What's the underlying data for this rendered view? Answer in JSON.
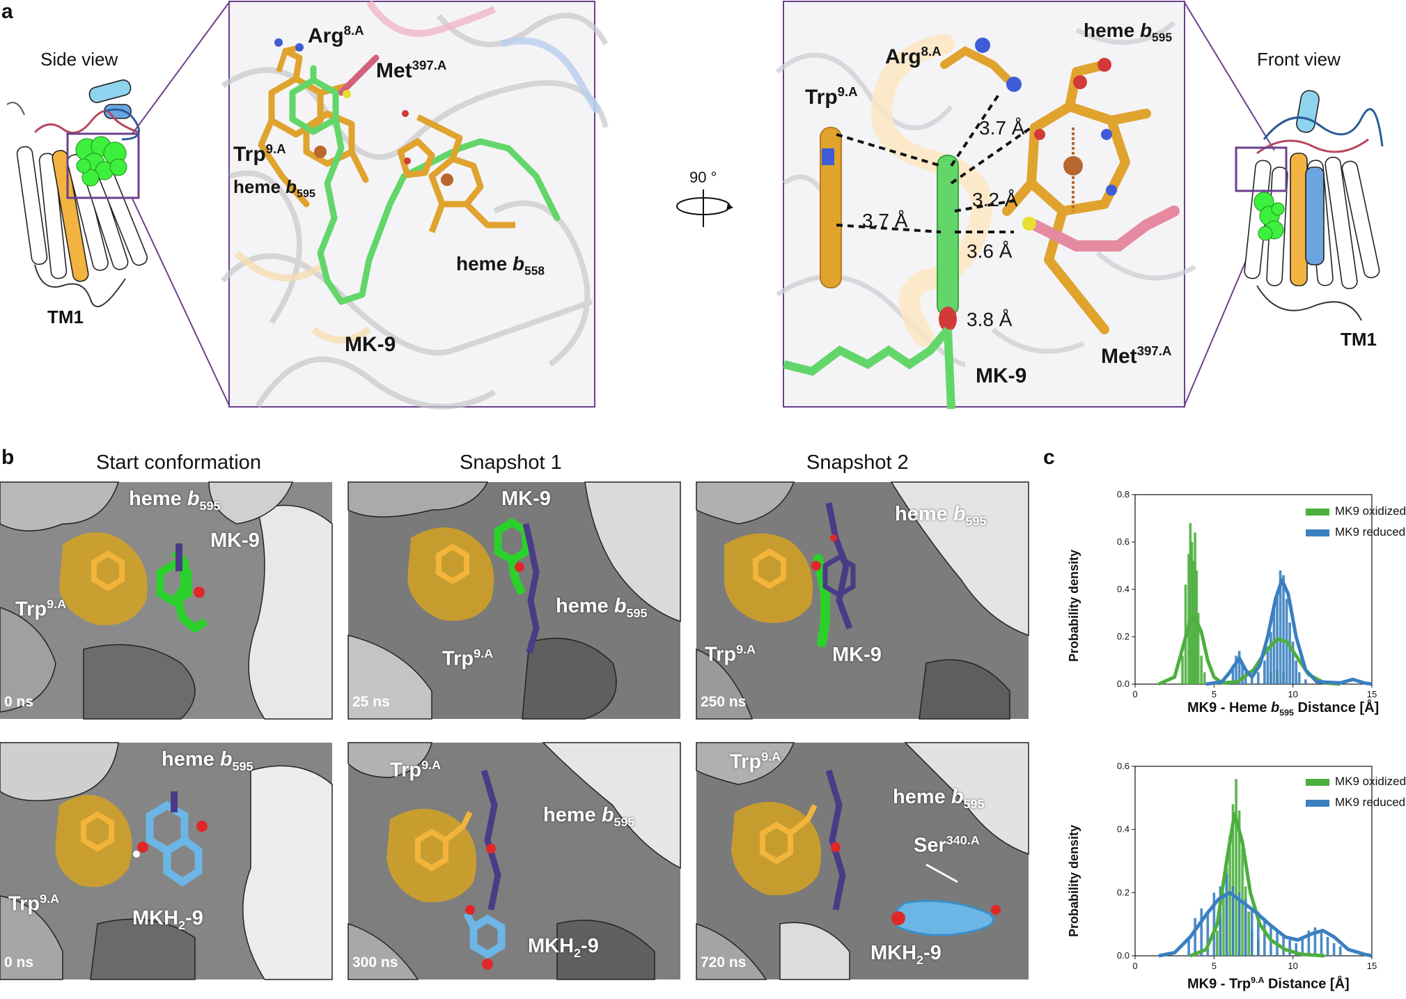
{
  "panel_labels": {
    "a": "a",
    "b": "b",
    "c": "c"
  },
  "panel_a": {
    "side_view_title": "Side view",
    "front_view_title": "Front view",
    "tm1_left": "TM1",
    "tm1_right": "TM1",
    "rotation_label": "90 °",
    "inset_left": {
      "arg": "Arg",
      "arg_sup": "8.A",
      "met": "Met",
      "met_sup": "397.A",
      "trp": "Trp",
      "trp_sup": "9.A",
      "heme595": "heme ",
      "heme595_b": "b",
      "heme595_sub": "595",
      "heme558": "heme ",
      "heme558_b": "b",
      "heme558_sub": "558",
      "mk9": "MK-9"
    },
    "inset_right": {
      "arg": "Arg",
      "arg_sup": "8.A",
      "trp": "Trp",
      "trp_sup": "9.A",
      "heme595": "heme ",
      "heme595_b": "b",
      "heme595_sub": "595",
      "met": "Met",
      "met_sup": "397.A",
      "mk9": "MK-9",
      "d1": "3.7 Å",
      "d2": "3.7 Å",
      "d3": "3.2 Å",
      "d4": "3.6 Å",
      "d5": "3.8 Å"
    }
  },
  "panel_b": {
    "col_titles": [
      "Start conformation",
      "Snapshot 1",
      "Snapshot 2"
    ],
    "panels": [
      {
        "time": "0 ns",
        "labels": [
          "heme b595",
          "MK-9",
          "Trp9.A"
        ]
      },
      {
        "time": "25 ns",
        "labels": [
          "MK-9",
          "heme b595",
          "Trp9.A"
        ]
      },
      {
        "time": "250 ns",
        "labels": [
          "heme b595",
          "Trp9.A",
          "MK-9"
        ]
      },
      {
        "time": "0 ns",
        "labels": [
          "heme b595",
          "Trp9.A",
          "MKH2-9"
        ]
      },
      {
        "time": "300 ns",
        "labels": [
          "Trp9.A",
          "heme b595",
          "MKH2-9"
        ]
      },
      {
        "time": "720 ns",
        "labels": [
          "Trp9.A",
          "heme b595",
          "Ser340.A",
          "MKH2-9"
        ]
      }
    ],
    "text": {
      "heme": "heme ",
      "b": "b",
      "sub595": "595",
      "mk9": "MK-9",
      "trp": "Trp",
      "trp_sup": "9.A",
      "mkh": "MKH",
      "mkh_sub": "2",
      "mkh_tail": "-9",
      "ser": "Ser",
      "ser_sup": "340.A"
    }
  },
  "colors": {
    "oxidized": "#4caf3e",
    "reduced": "#3a7fc0",
    "box": "#6b3f8e",
    "heme": "#e0a32e",
    "trp_surface": "#d4a017"
  },
  "chart_data": [
    {
      "type": "bar",
      "title": "",
      "xlabel": "MK9 - Heme b595 Distance [Å]",
      "ylabel": "Probability density",
      "xlim": [
        0,
        15
      ],
      "ylim": [
        0,
        0.8
      ],
      "xticks": [
        0,
        5,
        10,
        15
      ],
      "yticks": [
        0.0,
        0.2,
        0.4,
        0.6,
        0.8
      ],
      "legend": "top-right",
      "series": [
        {
          "name": "MK9 oxidized",
          "color": "#4caf3e",
          "bars": [
            [
              3.0,
              0.12
            ],
            [
              3.2,
              0.42
            ],
            [
              3.4,
              0.55
            ],
            [
              3.5,
              0.68
            ],
            [
              3.6,
              0.6
            ],
            [
              3.7,
              0.52
            ],
            [
              3.8,
              0.64
            ],
            [
              3.9,
              0.48
            ],
            [
              4.0,
              0.3
            ],
            [
              4.2,
              0.12
            ],
            [
              4.4,
              0.05
            ],
            [
              8.6,
              0.05
            ],
            [
              9.0,
              0.06
            ],
            [
              9.4,
              0.05
            ]
          ],
          "kde": [
            [
              1.5,
              0.0
            ],
            [
              2.5,
              0.03
            ],
            [
              3.0,
              0.15
            ],
            [
              3.5,
              0.27
            ],
            [
              3.8,
              0.28
            ],
            [
              4.2,
              0.22
            ],
            [
              4.6,
              0.1
            ],
            [
              5.0,
              0.03
            ],
            [
              5.5,
              0.005
            ],
            [
              6.5,
              0.01
            ],
            [
              7.5,
              0.06
            ],
            [
              8.3,
              0.14
            ],
            [
              9.0,
              0.19
            ],
            [
              9.6,
              0.18
            ],
            [
              10.2,
              0.12
            ],
            [
              11.0,
              0.04
            ],
            [
              12.0,
              0.005
            ],
            [
              13,
              0.0
            ]
          ]
        },
        {
          "name": "MK9 reduced",
          "color": "#3a7fc0",
          "bars": [
            [
              6.2,
              0.08
            ],
            [
              6.4,
              0.12
            ],
            [
              6.6,
              0.14
            ],
            [
              6.8,
              0.08
            ],
            [
              7.0,
              0.05
            ],
            [
              7.4,
              0.03
            ],
            [
              7.8,
              0.05
            ],
            [
              8.2,
              0.1
            ],
            [
              8.4,
              0.16
            ],
            [
              8.6,
              0.22
            ],
            [
              8.8,
              0.32
            ],
            [
              9.0,
              0.38
            ],
            [
              9.2,
              0.48
            ],
            [
              9.4,
              0.46
            ],
            [
              9.6,
              0.36
            ],
            [
              9.8,
              0.26
            ],
            [
              10.0,
              0.18
            ],
            [
              10.2,
              0.1
            ],
            [
              10.4,
              0.05
            ],
            [
              10.8,
              0.02
            ]
          ],
          "kde": [
            [
              4.5,
              0.0
            ],
            [
              5.5,
              0.01
            ],
            [
              6.0,
              0.05
            ],
            [
              6.6,
              0.11
            ],
            [
              7.0,
              0.06
            ],
            [
              7.4,
              0.03
            ],
            [
              7.9,
              0.08
            ],
            [
              8.4,
              0.2
            ],
            [
              8.9,
              0.36
            ],
            [
              9.3,
              0.44
            ],
            [
              9.7,
              0.38
            ],
            [
              10.2,
              0.2
            ],
            [
              10.8,
              0.06
            ],
            [
              11.5,
              0.01
            ],
            [
              13.0,
              0.005
            ],
            [
              13.8,
              0.02
            ],
            [
              14.5,
              0.005
            ],
            [
              15,
              0.0
            ]
          ]
        }
      ]
    },
    {
      "type": "bar",
      "title": "",
      "xlabel": "MK9 - Trp9.A Distance [Å]",
      "ylabel": "Probability density",
      "xlim": [
        0,
        15
      ],
      "ylim": [
        0,
        0.6
      ],
      "xticks": [
        0,
        5,
        10,
        15
      ],
      "yticks": [
        0.0,
        0.2,
        0.4,
        0.6
      ],
      "legend": "top-right",
      "series": [
        {
          "name": "MK9 oxidized",
          "color": "#4caf3e",
          "bars": [
            [
              5.2,
              0.08
            ],
            [
              5.4,
              0.12
            ],
            [
              5.6,
              0.2
            ],
            [
              5.8,
              0.28
            ],
            [
              6.0,
              0.38
            ],
            [
              6.2,
              0.48
            ],
            [
              6.4,
              0.56
            ],
            [
              6.6,
              0.46
            ],
            [
              6.8,
              0.34
            ],
            [
              7.0,
              0.22
            ],
            [
              7.2,
              0.14
            ],
            [
              7.4,
              0.08
            ],
            [
              7.8,
              0.05
            ]
          ],
          "kde": [
            [
              3.5,
              0.0
            ],
            [
              4.5,
              0.02
            ],
            [
              5.2,
              0.1
            ],
            [
              5.8,
              0.3
            ],
            [
              6.3,
              0.45
            ],
            [
              6.8,
              0.36
            ],
            [
              7.3,
              0.2
            ],
            [
              7.9,
              0.1
            ],
            [
              8.6,
              0.05
            ],
            [
              9.5,
              0.02
            ],
            [
              10.5,
              0.005
            ],
            [
              12,
              0.0
            ]
          ]
        },
        {
          "name": "MK9 reduced",
          "color": "#3a7fc0",
          "bars": [
            [
              3.4,
              0.05
            ],
            [
              3.8,
              0.12
            ],
            [
              4.2,
              0.15
            ],
            [
              4.6,
              0.14
            ],
            [
              5.0,
              0.2
            ],
            [
              5.4,
              0.22
            ],
            [
              5.8,
              0.26
            ],
            [
              6.2,
              0.22
            ],
            [
              6.6,
              0.2
            ],
            [
              7.0,
              0.18
            ],
            [
              7.4,
              0.15
            ],
            [
              7.8,
              0.14
            ],
            [
              8.2,
              0.12
            ],
            [
              8.6,
              0.1
            ],
            [
              9.0,
              0.08
            ],
            [
              9.4,
              0.06
            ],
            [
              9.8,
              0.05
            ],
            [
              10.2,
              0.04
            ],
            [
              10.6,
              0.06
            ],
            [
              11.0,
              0.08
            ],
            [
              11.4,
              0.09
            ],
            [
              11.8,
              0.08
            ],
            [
              12.2,
              0.06
            ],
            [
              12.6,
              0.04
            ],
            [
              13.0,
              0.03
            ]
          ],
          "kde": [
            [
              1.5,
              0.0
            ],
            [
              2.5,
              0.01
            ],
            [
              3.5,
              0.06
            ],
            [
              4.5,
              0.13
            ],
            [
              5.3,
              0.18
            ],
            [
              6.0,
              0.2
            ],
            [
              6.8,
              0.17
            ],
            [
              7.6,
              0.14
            ],
            [
              8.5,
              0.1
            ],
            [
              9.5,
              0.06
            ],
            [
              10.3,
              0.05
            ],
            [
              11.2,
              0.07
            ],
            [
              11.9,
              0.08
            ],
            [
              12.6,
              0.06
            ],
            [
              13.5,
              0.02
            ],
            [
              14.5,
              0.005
            ],
            [
              15,
              0.0
            ]
          ]
        }
      ]
    }
  ]
}
